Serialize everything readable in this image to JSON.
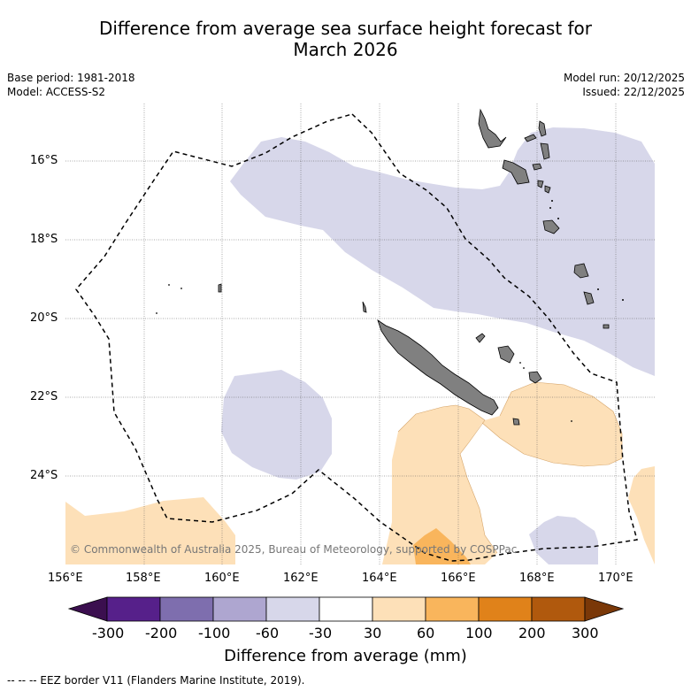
{
  "title_line1": "Difference from average sea surface height forecast for",
  "title_line2": "March 2026",
  "base_period": "Base period: 1981-2018",
  "model": "Model: ACCESS-S2",
  "model_run": "Model run: 20/12/2025",
  "issued": "Issued: 22/12/2025",
  "copyright": "© Commonwealth of Australia 2025, Bureau of Meteorology, supported by COSPPac",
  "lat_labels": [
    "16°S",
    "18°S",
    "20°S",
    "22°S",
    "24°S"
  ],
  "lon_labels": [
    "156°E",
    "158°E",
    "160°E",
    "162°E",
    "164°E",
    "166°E",
    "168°E",
    "170°E"
  ],
  "colorbar": {
    "title": "Difference from average (mm)",
    "tick_labels": [
      "-300",
      "-200",
      "-100",
      "-60",
      "-30",
      "30",
      "60",
      "100",
      "200",
      "300"
    ],
    "colors": [
      "#3b0f4f",
      "#56208a",
      "#7e6eae",
      "#aea6d0",
      "#d7d7ea",
      "#ffffff",
      "#fde0b8",
      "#f9b55c",
      "#e0821a",
      "#b0590d",
      "#7a3808"
    ]
  },
  "footnote": "--  --  -- EEZ border V11 (Flanders Marine Institute, 2019).",
  "legend_colors": {
    "land": "#7f7f7f",
    "negative_light": "#d7d7ea",
    "positive_light": "#fde0b8",
    "positive_mid": "#f9b55c"
  }
}
